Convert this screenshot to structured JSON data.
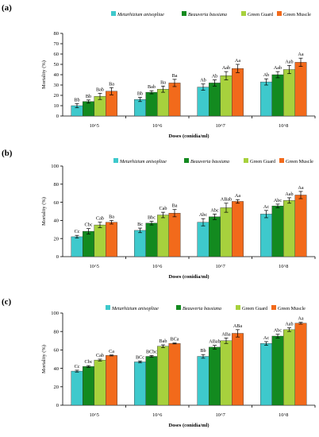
{
  "colors": {
    "Metarhizium anisopliae": "#3ec9cc",
    "Beauveria bassiana": "#138a1f",
    "Green Guard": "#a7d13d",
    "Green Muscle": "#f26a1b"
  },
  "chart_data": [
    {
      "panel_label": "(a)",
      "type": "bar",
      "xlabel": "Doses (conidia/ml)",
      "ylabel": "Mortality (%)",
      "ylim": [
        0,
        80
      ],
      "yticks": [
        0,
        10,
        20,
        30,
        40,
        50,
        60,
        70,
        80
      ],
      "categories": [
        "10^5",
        "10^6",
        "10^7",
        "10^8"
      ],
      "legend_position": "top",
      "grid": false,
      "series": [
        {
          "name": "Metarhizium anisopliae",
          "values": [
            10,
            16,
            28,
            33
          ],
          "errors": [
            2,
            2,
            3,
            3
          ],
          "labels": [
            "Bb",
            "Bb",
            "Ab",
            "Ab"
          ]
        },
        {
          "name": "Beauveria bassiana",
          "values": [
            14,
            23,
            32,
            40
          ],
          "errors": [
            1.5,
            1.5,
            3,
            3
          ],
          "labels": [
            "Bb",
            "Bab",
            "Ab",
            "Aab"
          ]
        },
        {
          "name": "Green Guard",
          "values": [
            19,
            26,
            39,
            45
          ],
          "errors": [
            3,
            3,
            4,
            4
          ],
          "labels": [
            "Bab",
            "Ba",
            "Aab",
            "Aab"
          ]
        },
        {
          "name": "Green Muscle",
          "values": [
            24,
            32,
            46,
            52
          ],
          "errors": [
            3.5,
            3.5,
            4,
            4
          ],
          "labels": [
            "Ba",
            "Ba",
            "Aa",
            "Aa"
          ]
        }
      ]
    },
    {
      "panel_label": "(b)",
      "type": "bar",
      "xlabel": "Doses (conidia/ml)",
      "ylabel": "Mortality (%)",
      "ylim": [
        0,
        100
      ],
      "yticks": [
        0,
        20,
        40,
        60,
        80,
        100
      ],
      "categories": [
        "10^5",
        "10^6",
        "10^7",
        "10^8"
      ],
      "legend_position": "top",
      "grid": false,
      "series": [
        {
          "name": "Metarhizium anisopliae",
          "values": [
            22,
            29,
            38,
            47
          ],
          "errors": [
            1.5,
            2.5,
            4,
            4
          ],
          "labels": [
            "Cc",
            "Bc",
            "Abc",
            "Ac"
          ]
        },
        {
          "name": "Beauveria bassiana",
          "values": [
            28,
            37,
            44,
            56
          ],
          "errors": [
            3,
            2,
            3,
            2
          ],
          "labels": [
            "Cbc",
            "Bbc",
            "Abc",
            "Abc"
          ]
        },
        {
          "name": "Green Guard",
          "values": [
            35,
            46,
            54,
            62
          ],
          "errors": [
            3,
            3,
            5,
            3
          ],
          "labels": [
            "Cab",
            "Cab",
            "ABab",
            "Aab"
          ]
        },
        {
          "name": "Green Muscle",
          "values": [
            38,
            48,
            61,
            68
          ],
          "errors": [
            2,
            4,
            2,
            4
          ],
          "labels": [
            "Ba",
            "Ba",
            "Aa",
            "Aa"
          ]
        }
      ]
    },
    {
      "panel_label": "(c)",
      "type": "bar",
      "xlabel": "Doses (conidia/ml)",
      "ylabel": "Mortality (%)",
      "ylim": [
        0,
        100
      ],
      "yticks": [
        0,
        20,
        40,
        60,
        80,
        100
      ],
      "categories": [
        "10^5",
        "10^6",
        "10^7",
        "10^8"
      ],
      "legend_position": "top",
      "grid": false,
      "series": [
        {
          "name": "Metarhizium anisopliae",
          "values": [
            37,
            47,
            53,
            67
          ],
          "errors": [
            1,
            1,
            2,
            2
          ],
          "labels": [
            "Cc",
            "BCc",
            "Bb",
            "Ac"
          ]
        },
        {
          "name": "Beauveria bassiana",
          "values": [
            42,
            53,
            63,
            75
          ],
          "errors": [
            1,
            1,
            2,
            2
          ],
          "labels": [
            "Cbc",
            "BCbc",
            "ABab",
            "Abc"
          ]
        },
        {
          "name": "Green Guard",
          "values": [
            49,
            64,
            70,
            82
          ],
          "errors": [
            1,
            1.5,
            3,
            2
          ],
          "labels": [
            "Cab",
            "Bab",
            "ABa",
            "Aab"
          ]
        },
        {
          "name": "Green Muscle",
          "values": [
            54,
            67,
            78,
            89
          ],
          "errors": [
            0.5,
            0.5,
            4,
            1
          ],
          "labels": [
            "Ca",
            "BCa",
            "ABa",
            "Aa"
          ]
        }
      ]
    }
  ]
}
